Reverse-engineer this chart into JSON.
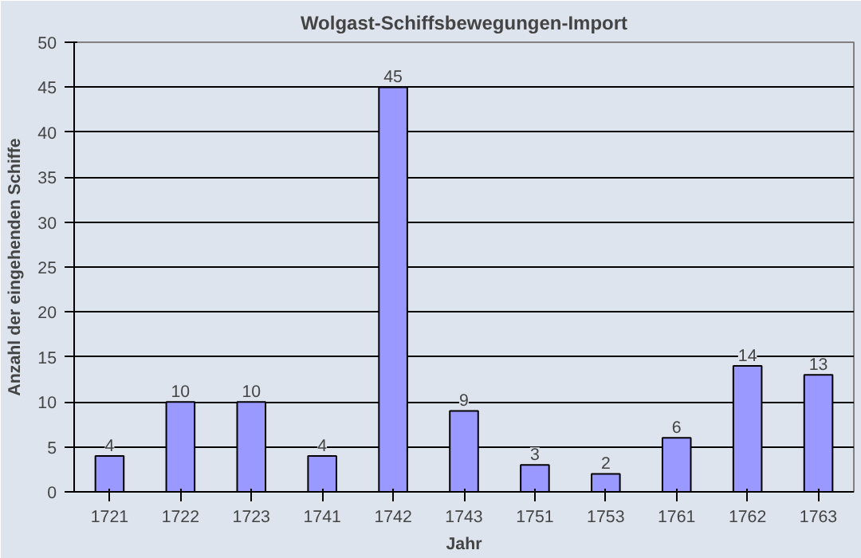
{
  "chart_data": {
    "type": "bar",
    "title": "Wolgast-Schiffsbewegungen-Import",
    "xlabel": "Jahr",
    "ylabel": "Anzahl der eingehenden Schiffe",
    "categories": [
      "1721",
      "1722",
      "1723",
      "1741",
      "1742",
      "1743",
      "1751",
      "1753",
      "1761",
      "1762",
      "1763"
    ],
    "values": [
      4,
      10,
      10,
      4,
      45,
      9,
      3,
      2,
      6,
      14,
      13
    ],
    "color": "#9999ff",
    "ylim": [
      0,
      50
    ],
    "yticks": [
      0,
      5,
      10,
      15,
      20,
      25,
      30,
      35,
      40,
      45,
      50
    ],
    "grid": "y",
    "data_labels": true
  }
}
